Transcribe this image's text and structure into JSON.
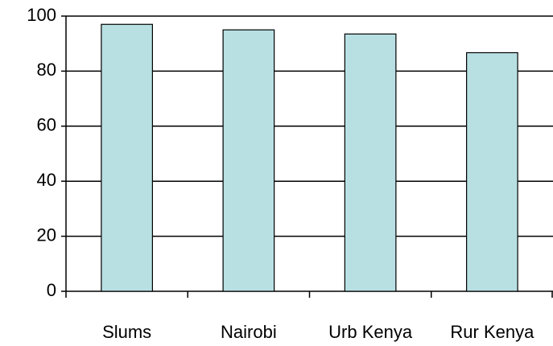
{
  "chart_data": {
    "type": "bar",
    "categories": [
      "Slums",
      "Nairobi",
      "Urb Kenya",
      "Rur Kenya"
    ],
    "values": [
      97,
      95,
      93.5,
      86.7
    ],
    "color": "#b8e0e3",
    "ylim": [
      0,
      100
    ],
    "yticks": [
      0,
      20,
      40,
      60,
      80,
      100
    ],
    "grid": true
  }
}
